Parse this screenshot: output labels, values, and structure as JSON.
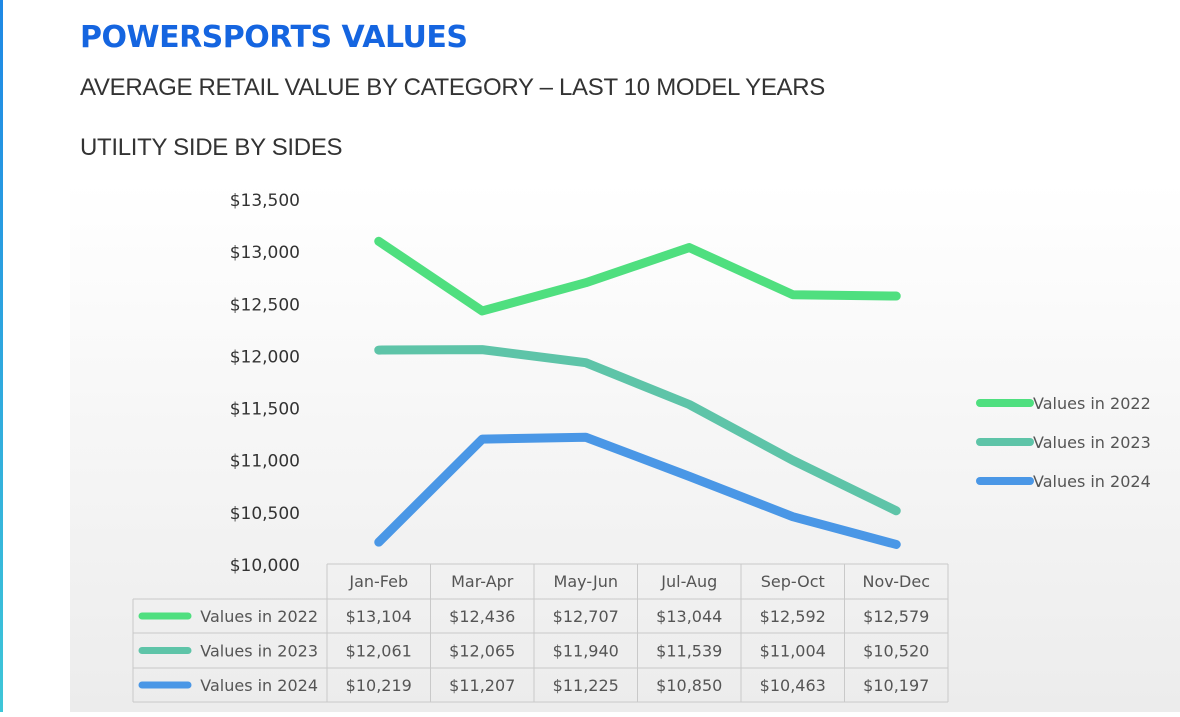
{
  "header": {
    "title": "POWERSPORTS VALUES",
    "subtitle": "AVERAGE RETAIL VALUE BY CATEGORY – LAST 10 MODEL YEARS",
    "section": "UTILITY SIDE BY SIDES"
  },
  "chart_data": {
    "type": "line",
    "title": "UTILITY SIDE BY SIDES",
    "categories": [
      "Jan-Feb",
      "Mar-Apr",
      "May-Jun",
      "Jul-Aug",
      "Sep-Oct",
      "Nov-Dec"
    ],
    "yticks": [
      "$10,000",
      "$10,500",
      "$11,000",
      "$11,500",
      "$12,000",
      "$12,500",
      "$13,000",
      "$13,500"
    ],
    "ylim": [
      10000,
      13500
    ],
    "legend_position": "right",
    "data_table": true,
    "series": [
      {
        "name": "Values in 2022",
        "color": "#4fdf7f",
        "values": [
          13104,
          12436,
          12707,
          13044,
          12592,
          12579
        ],
        "labels": [
          "$13,104",
          "$12,436",
          "$12,707",
          "$13,044",
          "$12,592",
          "$12,579"
        ]
      },
      {
        "name": "Values in 2023",
        "color": "#5ec4a8",
        "values": [
          12061,
          12065,
          11940,
          11539,
          11004,
          10520
        ],
        "labels": [
          "$12,061",
          "$12,065",
          "$11,940",
          "$11,539",
          "$11,004",
          "$10,520"
        ]
      },
      {
        "name": "Values in 2024",
        "color": "#4a97e6",
        "values": [
          10219,
          11207,
          11225,
          10850,
          10463,
          10197
        ],
        "labels": [
          "$10,219",
          "$11,207",
          "$11,225",
          "$10,850",
          "$10,463",
          "$10,197"
        ]
      }
    ]
  }
}
